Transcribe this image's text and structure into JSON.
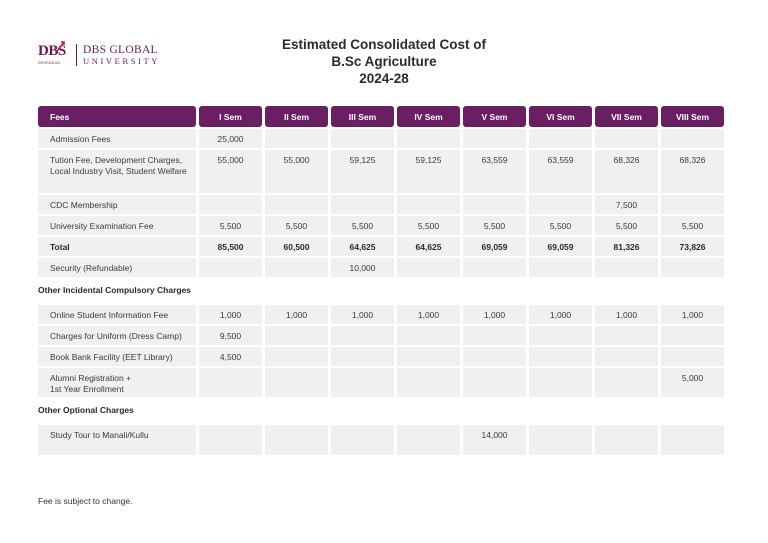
{
  "logo": {
    "mark": "DBS",
    "tagline": "DEHRADUN",
    "line1": "DBS GLOBAL",
    "line2": "UNIVERSITY"
  },
  "title": {
    "line1": "Estimated Consolidated Cost of",
    "line2": "B.Sc Agriculture",
    "line3": "2024-28"
  },
  "headers": [
    "Fees",
    "I Sem",
    "II Sem",
    "III Sem",
    "IV Sem",
    "V Sem",
    "VI Sem",
    "VII Sem",
    "VIII Sem"
  ],
  "main_rows": [
    {
      "label": "Admission Fees",
      "values": [
        "25,000",
        "",
        "",
        "",
        "",
        "",
        "",
        ""
      ]
    },
    {
      "label": "Tution Fee, Development Charges, Local Industry Visit, Student Welfare",
      "values": [
        "55,000",
        "55,000",
        "59,125",
        "59,125",
        "63,559",
        "63,559",
        "68,326",
        "68,326"
      ]
    },
    {
      "label": "CDC Membership",
      "values": [
        "",
        "",
        "",
        "",
        "",
        "",
        "7,500",
        ""
      ]
    },
    {
      "label": "University Examination Fee",
      "values": [
        "5,500",
        "5,500",
        "5,500",
        "5,500",
        "5,500",
        "5,500",
        "5,500",
        "5,500"
      ]
    },
    {
      "label": "Total",
      "values": [
        "85,500",
        "60,500",
        "64,625",
        "64,625",
        "69,059",
        "69,059",
        "81,326",
        "73,826"
      ]
    },
    {
      "label": "Security (Refundable)",
      "values": [
        "",
        "",
        "10,000",
        "",
        "",
        "",
        "",
        ""
      ]
    }
  ],
  "section2": {
    "title": "Other Incidental Compulsory Charges",
    "rows": [
      {
        "label": "Online Student Information Fee",
        "values": [
          "1,000",
          "1,000",
          "1,000",
          "1,000",
          "1,000",
          "1,000",
          "1,000",
          "1,000"
        ]
      },
      {
        "label": "Charges for Uniform (Dress Camp)",
        "values": [
          "9,500",
          "",
          "",
          "",
          "",
          "",
          "",
          ""
        ]
      },
      {
        "label": "Book Bank Facility (EET Library)",
        "values": [
          "4,500",
          "",
          "",
          "",
          "",
          "",
          "",
          ""
        ]
      },
      {
        "label1": "Alumni Registration +",
        "label2": "1st Year Enrollment",
        "values": [
          "",
          "",
          "",
          "",
          "",
          "",
          "",
          "5,000"
        ]
      }
    ]
  },
  "section3": {
    "title": "Other Optional Charges",
    "rows": [
      {
        "label": "Study Tour to Manali/Kullu",
        "values": [
          "",
          "",
          "",
          "",
          "14,000",
          "",
          "",
          ""
        ]
      }
    ]
  },
  "note": "Fee is subject to change.",
  "colors": {
    "header_bg": "#6b1f63",
    "cell_bg": "#f0f0f0",
    "brand": "#6a1a5e"
  }
}
